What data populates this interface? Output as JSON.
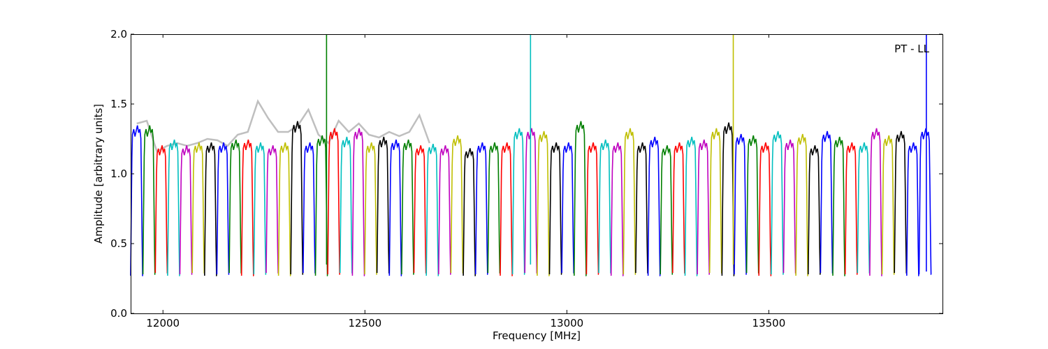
{
  "chart_data": {
    "type": "line",
    "title": "",
    "annotation": "PT - LL",
    "xlabel": "Frequency [MHz]",
    "ylabel": "Amplitude [arbitrary units]",
    "xlim": [
      11920,
      13930
    ],
    "ylim": [
      0.0,
      2.0
    ],
    "x_ticks": [
      12000,
      12500,
      13000,
      13500
    ],
    "x_tick_labels": [
      "12000",
      "12500",
      "13000",
      "13500"
    ],
    "y_ticks": [
      0.0,
      0.5,
      1.0,
      1.5,
      2.0
    ],
    "y_tick_labels": [
      "0.0",
      "0.5",
      "1.0",
      "1.5",
      "2.0"
    ],
    "grid": false,
    "legend": "none",
    "background_series": {
      "color": "#bfbfbf",
      "description_of_values": "raw amplitude plotted beneath colored sub-band segments",
      "x": [
        11935,
        11960,
        11985,
        12010,
        12035,
        12060,
        12085,
        12110,
        12135,
        12160,
        12185,
        12210,
        12235,
        12260,
        12285,
        12310,
        12335,
        12360,
        12385,
        12410,
        12435,
        12460,
        12485,
        12510,
        12535,
        12560,
        12585,
        12610,
        12635,
        12660
      ],
      "y": [
        1.36,
        1.38,
        1.16,
        1.2,
        1.22,
        1.2,
        1.22,
        1.25,
        1.24,
        1.2,
        1.28,
        1.3,
        1.52,
        1.4,
        1.3,
        1.3,
        1.35,
        1.46,
        1.28,
        1.22,
        1.38,
        1.3,
        1.36,
        1.28,
        1.26,
        1.3,
        1.27,
        1.3,
        1.42,
        1.22
      ]
    },
    "segment_width_mhz": 30.5,
    "segments": [
      {
        "start": 11920,
        "level": 1.32,
        "color": "#0000ff"
      },
      {
        "start": 11950.5,
        "level": 1.32,
        "color": "#007f00"
      },
      {
        "start": 11981,
        "level": 1.18,
        "color": "#ff0000"
      },
      {
        "start": 12011.5,
        "level": 1.22,
        "color": "#00bfbf"
      },
      {
        "start": 12042,
        "level": 1.18,
        "color": "#bf00bf"
      },
      {
        "start": 12072.5,
        "level": 1.2,
        "color": "#bfbf00"
      },
      {
        "start": 12103,
        "level": 1.2,
        "color": "#000000"
      },
      {
        "start": 12133.5,
        "level": 1.2,
        "color": "#0000ff"
      },
      {
        "start": 12164,
        "level": 1.22,
        "color": "#007f00"
      },
      {
        "start": 12194.5,
        "level": 1.22,
        "color": "#ff0000"
      },
      {
        "start": 12225,
        "level": 1.2,
        "color": "#00bfbf"
      },
      {
        "start": 12255.5,
        "level": 1.18,
        "color": "#bf00bf"
      },
      {
        "start": 12286,
        "level": 1.2,
        "color": "#bfbf00"
      },
      {
        "start": 12316.5,
        "level": 1.35,
        "color": "#000000"
      },
      {
        "start": 12347,
        "level": 1.2,
        "color": "#0000ff"
      },
      {
        "start": 12377.5,
        "level": 1.25,
        "color": "#007f00"
      },
      {
        "start": 12408,
        "level": 1.3,
        "color": "#ff0000"
      },
      {
        "start": 12438.5,
        "level": 1.24,
        "color": "#00bfbf"
      },
      {
        "start": 12469,
        "level": 1.3,
        "color": "#bf00bf"
      },
      {
        "start": 12499.5,
        "level": 1.2,
        "color": "#bfbf00"
      },
      {
        "start": 12530,
        "level": 1.24,
        "color": "#000000"
      },
      {
        "start": 12560.5,
        "level": 1.22,
        "color": "#0000ff"
      },
      {
        "start": 12591,
        "level": 1.22,
        "color": "#007f00"
      },
      {
        "start": 12621.5,
        "level": 1.18,
        "color": "#ff0000"
      },
      {
        "start": 12652,
        "level": 1.19,
        "color": "#00bfbf"
      },
      {
        "start": 12682.5,
        "level": 1.18,
        "color": "#bf00bf"
      },
      {
        "start": 12713,
        "level": 1.25,
        "color": "#bfbf00"
      },
      {
        "start": 12743.5,
        "level": 1.16,
        "color": "#000000"
      },
      {
        "start": 12774,
        "level": 1.2,
        "color": "#0000ff"
      },
      {
        "start": 12804.5,
        "level": 1.2,
        "color": "#007f00"
      },
      {
        "start": 12835,
        "level": 1.2,
        "color": "#ff0000"
      },
      {
        "start": 12865.5,
        "level": 1.3,
        "color": "#00bfbf"
      },
      {
        "start": 12896,
        "level": 1.3,
        "color": "#bf00bf"
      },
      {
        "start": 12926.5,
        "level": 1.28,
        "color": "#bfbf00"
      },
      {
        "start": 12957,
        "level": 1.2,
        "color": "#000000"
      },
      {
        "start": 12987.5,
        "level": 1.2,
        "color": "#0000ff"
      },
      {
        "start": 13018,
        "level": 1.35,
        "color": "#007f00"
      },
      {
        "start": 13048.5,
        "level": 1.2,
        "color": "#ff0000"
      },
      {
        "start": 13079,
        "level": 1.22,
        "color": "#00bfbf"
      },
      {
        "start": 13109.5,
        "level": 1.2,
        "color": "#bf00bf"
      },
      {
        "start": 13140,
        "level": 1.3,
        "color": "#bfbf00"
      },
      {
        "start": 13170.5,
        "level": 1.2,
        "color": "#000000"
      },
      {
        "start": 13201,
        "level": 1.24,
        "color": "#0000ff"
      },
      {
        "start": 13231.5,
        "level": 1.18,
        "color": "#007f00"
      },
      {
        "start": 13262,
        "level": 1.2,
        "color": "#ff0000"
      },
      {
        "start": 13292.5,
        "level": 1.24,
        "color": "#00bfbf"
      },
      {
        "start": 13323,
        "level": 1.22,
        "color": "#bf00bf"
      },
      {
        "start": 13353.5,
        "level": 1.3,
        "color": "#bfbf00"
      },
      {
        "start": 13384,
        "level": 1.34,
        "color": "#000000"
      },
      {
        "start": 13414.5,
        "level": 1.26,
        "color": "#0000ff"
      },
      {
        "start": 13445,
        "level": 1.25,
        "color": "#007f00"
      },
      {
        "start": 13475.5,
        "level": 1.2,
        "color": "#ff0000"
      },
      {
        "start": 13506,
        "level": 1.28,
        "color": "#00bfbf"
      },
      {
        "start": 13536.5,
        "level": 1.22,
        "color": "#bf00bf"
      },
      {
        "start": 13567,
        "level": 1.26,
        "color": "#bfbf00"
      },
      {
        "start": 13597.5,
        "level": 1.18,
        "color": "#000000"
      },
      {
        "start": 13628,
        "level": 1.28,
        "color": "#0000ff"
      },
      {
        "start": 13658.5,
        "level": 1.24,
        "color": "#007f00"
      },
      {
        "start": 13689,
        "level": 1.2,
        "color": "#ff0000"
      },
      {
        "start": 13719.5,
        "level": 1.2,
        "color": "#00bfbf"
      },
      {
        "start": 13750,
        "level": 1.3,
        "color": "#bf00bf"
      },
      {
        "start": 13780.5,
        "level": 1.25,
        "color": "#bfbf00"
      },
      {
        "start": 13811,
        "level": 1.28,
        "color": "#000000"
      },
      {
        "start": 13841.5,
        "level": 1.2,
        "color": "#0000ff"
      },
      {
        "start": 13872,
        "level": 1.3,
        "color": "#0000ff"
      }
    ],
    "spikes": [
      {
        "x": 12405,
        "color": "#007f00",
        "ymin": 0.35,
        "ymax": 2.0
      },
      {
        "x": 12910,
        "color": "#00bfbf",
        "ymin": 0.35,
        "ymax": 2.0
      },
      {
        "x": 13412,
        "color": "#bfbf00",
        "ymin": 0.35,
        "ymax": 2.0
      },
      {
        "x": 13890,
        "color": "#0000ff",
        "ymin": 0.3,
        "ymax": 2.0
      }
    ]
  }
}
